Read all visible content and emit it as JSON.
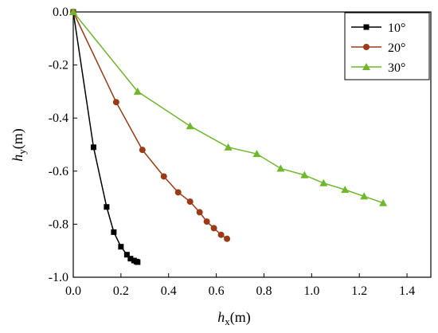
{
  "chart_data": {
    "type": "line",
    "xlabel": {
      "var": "h",
      "sub": "x",
      "unit": "(m)"
    },
    "ylabel": {
      "var": "h",
      "sub": "y",
      "unit": "(m)"
    },
    "xlim": [
      0.0,
      1.5
    ],
    "ylim": [
      -1.0,
      0.0
    ],
    "xticks": [
      "0.0",
      "0.2",
      "0.4",
      "0.6",
      "0.8",
      "1.0",
      "1.2",
      "1.4"
    ],
    "yticks": [
      "0.0",
      "-0.2",
      "-0.4",
      "-0.6",
      "-0.8",
      "-1.0"
    ],
    "xtick_values": [
      0.0,
      0.2,
      0.4,
      0.6,
      0.8,
      1.0,
      1.2,
      1.4
    ],
    "ytick_values": [
      0.0,
      -0.2,
      -0.4,
      -0.6,
      -0.8,
      -1.0
    ],
    "grid": false,
    "legend_position": "top-right",
    "series": [
      {
        "name": "10°",
        "color": "#000000",
        "marker": "square",
        "points": [
          [
            0.0,
            0.0
          ],
          [
            0.085,
            -0.51
          ],
          [
            0.14,
            -0.735
          ],
          [
            0.17,
            -0.83
          ],
          [
            0.2,
            -0.885
          ],
          [
            0.225,
            -0.915
          ],
          [
            0.24,
            -0.93
          ],
          [
            0.255,
            -0.937
          ],
          [
            0.265,
            -0.941
          ],
          [
            0.27,
            -0.943
          ]
        ]
      },
      {
        "name": "20°",
        "color": "#9B3A14",
        "marker": "circle",
        "points": [
          [
            0.0,
            0.0
          ],
          [
            0.18,
            -0.34
          ],
          [
            0.29,
            -0.52
          ],
          [
            0.38,
            -0.62
          ],
          [
            0.44,
            -0.68
          ],
          [
            0.49,
            -0.715
          ],
          [
            0.53,
            -0.755
          ],
          [
            0.56,
            -0.79
          ],
          [
            0.59,
            -0.815
          ],
          [
            0.62,
            -0.84
          ],
          [
            0.645,
            -0.855
          ]
        ]
      },
      {
        "name": "30°",
        "color": "#6FB82A",
        "marker": "triangle",
        "points": [
          [
            0.0,
            0.0
          ],
          [
            0.27,
            -0.3
          ],
          [
            0.49,
            -0.43
          ],
          [
            0.65,
            -0.51
          ],
          [
            0.77,
            -0.535
          ],
          [
            0.87,
            -0.59
          ],
          [
            0.97,
            -0.615
          ],
          [
            1.05,
            -0.645
          ],
          [
            1.14,
            -0.67
          ],
          [
            1.22,
            -0.695
          ],
          [
            1.3,
            -0.72
          ]
        ]
      }
    ]
  }
}
